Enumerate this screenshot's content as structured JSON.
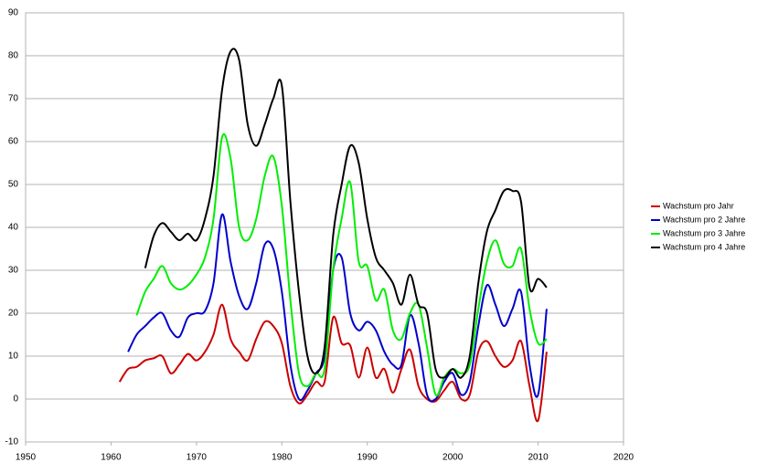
{
  "chart_data": {
    "type": "line",
    "x": [
      1961,
      1962,
      1963,
      1964,
      1965,
      1966,
      1967,
      1968,
      1969,
      1970,
      1971,
      1972,
      1973,
      1974,
      1975,
      1976,
      1977,
      1978,
      1979,
      1980,
      1981,
      1982,
      1983,
      1984,
      1985,
      1986,
      1987,
      1988,
      1989,
      1990,
      1991,
      1992,
      1993,
      1994,
      1995,
      1996,
      1997,
      1998,
      1999,
      2000,
      2001,
      2002,
      2003,
      2004,
      2005,
      2006,
      2007,
      2008,
      2009,
      2010,
      2011
    ],
    "series": [
      {
        "name": "Wachstum pro Jahr",
        "color": "#cc0000",
        "values": [
          4,
          7,
          7.5,
          9,
          9.5,
          10,
          6,
          8,
          10.5,
          9,
          11,
          15,
          22,
          14,
          11,
          9,
          14,
          18,
          17,
          13,
          3,
          -1,
          1,
          4,
          4,
          19,
          13,
          12.5,
          5,
          12,
          5,
          7,
          1.5,
          7,
          11.5,
          3,
          0,
          -0.5,
          2,
          4,
          0,
          1,
          11,
          13.5,
          10,
          7.5,
          9,
          13.5,
          3,
          -5,
          11
        ]
      },
      {
        "name": "Wachstum pro 2 Jahre",
        "color": "#0000cc",
        "values": [
          null,
          11,
          15,
          17,
          19,
          20,
          16,
          14.5,
          19,
          20,
          20.5,
          27,
          43,
          32,
          24,
          21,
          27,
          36,
          35,
          25,
          8,
          0,
          2,
          6,
          10,
          30,
          33,
          20,
          16,
          18,
          16,
          11,
          8,
          8,
          19.5,
          13,
          1,
          0,
          4,
          6,
          1,
          4,
          17,
          26.5,
          22,
          17,
          21,
          25,
          8,
          1,
          21
        ]
      },
      {
        "name": "Wachstum pro 3 Jahre",
        "color": "#00ee00",
        "values": [
          null,
          null,
          19.5,
          25,
          28,
          31,
          27,
          25.5,
          26.5,
          29,
          33,
          42,
          61,
          56,
          40,
          37,
          42,
          52,
          56.5,
          45,
          23,
          6,
          3,
          6,
          7,
          30,
          42,
          50.5,
          32,
          31,
          23,
          25.5,
          16,
          14,
          20,
          22,
          12,
          1,
          5,
          7,
          6,
          8,
          21,
          32,
          37,
          31.5,
          31,
          35,
          21,
          13,
          14
        ]
      },
      {
        "name": "Wachstum pro 4 Jahre",
        "color": "#000000",
        "values": [
          null,
          null,
          null,
          30.5,
          38,
          41,
          39,
          37,
          38.5,
          37,
          42,
          52,
          72,
          81,
          79,
          64,
          59,
          64,
          70,
          73,
          46,
          25,
          10,
          6,
          12,
          38,
          50,
          59,
          55,
          42,
          33,
          30,
          27,
          22,
          29,
          22,
          20,
          7,
          5,
          7,
          5,
          10,
          27,
          39,
          44,
          48.5,
          48.5,
          46,
          26,
          28,
          26
        ]
      }
    ],
    "xlim": [
      1950,
      2020
    ],
    "xticks": [
      1950,
      1960,
      1970,
      1980,
      1990,
      2000,
      2010,
      2020
    ],
    "ylim": [
      -10,
      90
    ],
    "yticks": [
      -10,
      0,
      10,
      20,
      30,
      40,
      50,
      60,
      70,
      80,
      90
    ],
    "grid": true,
    "legend": "right"
  }
}
